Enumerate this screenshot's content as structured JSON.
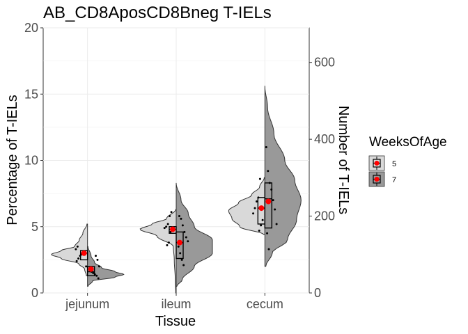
{
  "chart_data": {
    "type": "violin",
    "title": "AB_CD8AposCD8Bneg T-IELs",
    "xlabel": "Tissue",
    "ylabel": "Percentage of T-IELs",
    "y2label": "Number of T-IELs",
    "categories": [
      "jejunum",
      "ileum",
      "cecum"
    ],
    "ylim": [
      0,
      20
    ],
    "yticks": [
      0,
      5,
      10,
      15,
      20
    ],
    "y2lim": [
      0,
      690
    ],
    "y2ticks": [
      0,
      200,
      400,
      600
    ],
    "grid": true,
    "legend": {
      "title": "WeeksOfAge",
      "position": "right",
      "entries": [
        "5",
        "7"
      ]
    },
    "colors": {
      "5": "#d9d9d9",
      "7": "#999999",
      "mean": "#ff0000",
      "outline": "#333333"
    },
    "groups": [
      {
        "tissue": "jejunum",
        "weeks": "5",
        "side": "left",
        "violin_range": [
          1.3,
          5.2
        ],
        "density": [
          [
            1.3,
            0.02
          ],
          [
            1.8,
            0.05
          ],
          [
            2.2,
            0.15
          ],
          [
            2.6,
            0.45
          ],
          [
            2.9,
            0.62
          ],
          [
            3.2,
            0.45
          ],
          [
            3.5,
            0.22
          ],
          [
            4.0,
            0.14
          ],
          [
            4.5,
            0.08
          ],
          [
            5.2,
            0.01
          ]
        ],
        "box": {
          "q1": 2.5,
          "median": 3.0,
          "q3": 3.2
        },
        "mean": 3.0,
        "points": [
          2.0,
          2.4,
          2.6,
          2.8,
          2.9,
          3.0,
          3.1,
          3.3,
          3.5
        ]
      },
      {
        "tissue": "jejunum",
        "weeks": "7",
        "side": "right",
        "violin_range": [
          0.5,
          3.5
        ],
        "density": [
          [
            0.5,
            0.01
          ],
          [
            0.9,
            0.1
          ],
          [
            1.2,
            0.55
          ],
          [
            1.4,
            0.72
          ],
          [
            1.6,
            0.55
          ],
          [
            1.9,
            0.28
          ],
          [
            2.3,
            0.14
          ],
          [
            2.8,
            0.07
          ],
          [
            3.5,
            0.01
          ]
        ],
        "box": {
          "q1": 1.3,
          "median": 1.6,
          "q3": 2.0
        },
        "mean": 1.8,
        "points": [
          1.1,
          1.3,
          1.4,
          1.5,
          1.6,
          1.8,
          2.0,
          2.5,
          2.8
        ]
      },
      {
        "tissue": "ileum",
        "weeks": "5",
        "side": "left",
        "violin_range": [
          0.0,
          6.3
        ],
        "density": [
          [
            0.0,
            0.01
          ],
          [
            1.0,
            0.02
          ],
          [
            2.5,
            0.04
          ],
          [
            3.5,
            0.06
          ],
          [
            4.3,
            0.4
          ],
          [
            4.8,
            0.75
          ],
          [
            5.2,
            0.5
          ],
          [
            5.6,
            0.2
          ],
          [
            6.3,
            0.01
          ]
        ],
        "box": {
          "q1": 4.5,
          "median": 4.8,
          "q3": 5.0
        },
        "mean": 4.8,
        "points": [
          3.6,
          3.8,
          4.6,
          4.7,
          4.8,
          4.9,
          5.0,
          5.2,
          5.8,
          6.1
        ]
      },
      {
        "tissue": "ileum",
        "weeks": "7",
        "side": "right",
        "violin_range": [
          0.5,
          8.3
        ],
        "density": [
          [
            0.5,
            0.01
          ],
          [
            1.0,
            0.1
          ],
          [
            2.0,
            0.3
          ],
          [
            3.0,
            0.6
          ],
          [
            4.0,
            0.6
          ],
          [
            5.0,
            0.3
          ],
          [
            6.0,
            0.2
          ],
          [
            7.0,
            0.08
          ],
          [
            8.3,
            0.0
          ]
        ],
        "box": {
          "q1": 2.6,
          "median": 3.8,
          "q3": 4.6
        },
        "mean": 3.8,
        "points": [
          2.1,
          2.5,
          3.0,
          3.5,
          3.9,
          4.2,
          4.6,
          5.1,
          5.6,
          5.8
        ]
      },
      {
        "tissue": "cecum",
        "weeks": "5",
        "side": "left",
        "violin_range": [
          4.4,
          8.7
        ],
        "density": [
          [
            4.4,
            0.02
          ],
          [
            5.0,
            0.38
          ],
          [
            5.6,
            0.5
          ],
          [
            6.2,
            0.55
          ],
          [
            6.8,
            0.4
          ],
          [
            7.4,
            0.2
          ],
          [
            8.0,
            0.08
          ],
          [
            8.7,
            0.01
          ]
        ],
        "box": {
          "q1": 5.2,
          "median": 6.4,
          "q3": 7.2
        },
        "mean": 6.4,
        "points": [
          4.7,
          5.1,
          5.5,
          6.0,
          6.4,
          6.9,
          7.2,
          8.6
        ]
      },
      {
        "tissue": "cecum",
        "weeks": "7",
        "side": "right",
        "violin_range": [
          2.0,
          15.6
        ],
        "density": [
          [
            2.0,
            0.01
          ],
          [
            3.0,
            0.08
          ],
          [
            4.0,
            0.25
          ],
          [
            5.5,
            0.35
          ],
          [
            7.0,
            0.4
          ],
          [
            8.5,
            0.33
          ],
          [
            10.0,
            0.22
          ],
          [
            12.0,
            0.1
          ],
          [
            14.0,
            0.03
          ],
          [
            15.6,
            0.0
          ]
        ],
        "box": {
          "q1": 4.9,
          "median": 7.1,
          "q3": 8.3
        },
        "mean": 6.9,
        "points": [
          3.3,
          4.5,
          5.2,
          6.3,
          7.0,
          7.8,
          8.3,
          9.2,
          11.0
        ]
      }
    ]
  }
}
